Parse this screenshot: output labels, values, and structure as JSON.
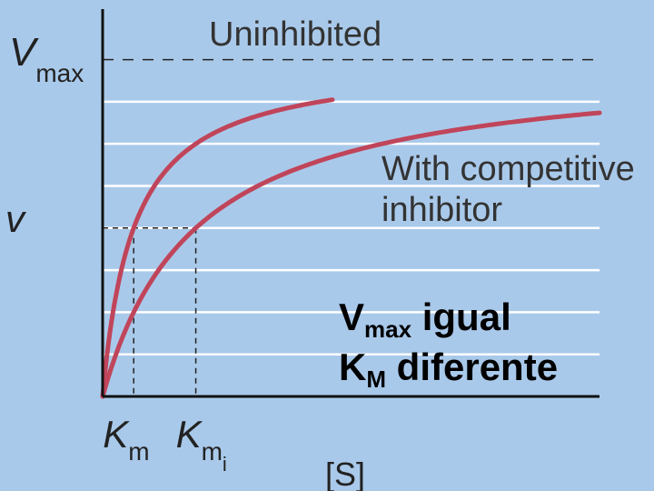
{
  "chart_data": {
    "type": "line",
    "title": "",
    "xlabel": "[S]",
    "ylabel": "v",
    "y_tick_label": {
      "main": "V",
      "sub": "max"
    },
    "x_tick_labels": [
      {
        "main": "K",
        "sub": "m",
        "subsub": ""
      },
      {
        "main": "K",
        "sub": "m",
        "subsub": "i"
      }
    ],
    "vmax": 1.0,
    "km_uninhibited": 1.0,
    "km_inhibited": 3.0,
    "xlim": [
      0,
      16
    ],
    "ylim": [
      0,
      1.15
    ],
    "grid": true,
    "series": [
      {
        "name": "Uninhibited",
        "x_end": 7.4,
        "color": "#c0455a"
      },
      {
        "name": "With competitive inhibitor",
        "x_end": 16,
        "color": "#c0455a"
      }
    ],
    "annotations": {
      "series_label_1": "With competitive",
      "series_label_2": "inhibitor"
    }
  },
  "note": {
    "line1_main": "V",
    "line1_sub": "max",
    "line1_rest": " igual",
    "line2_main": "K",
    "line2_sub": "M",
    "line2_rest": " diferente"
  },
  "colors": {
    "background": "#a9c9ea",
    "curve": "#c0455a",
    "axis": "#111111",
    "grid": "#ffffff",
    "dashed": "#222222"
  }
}
